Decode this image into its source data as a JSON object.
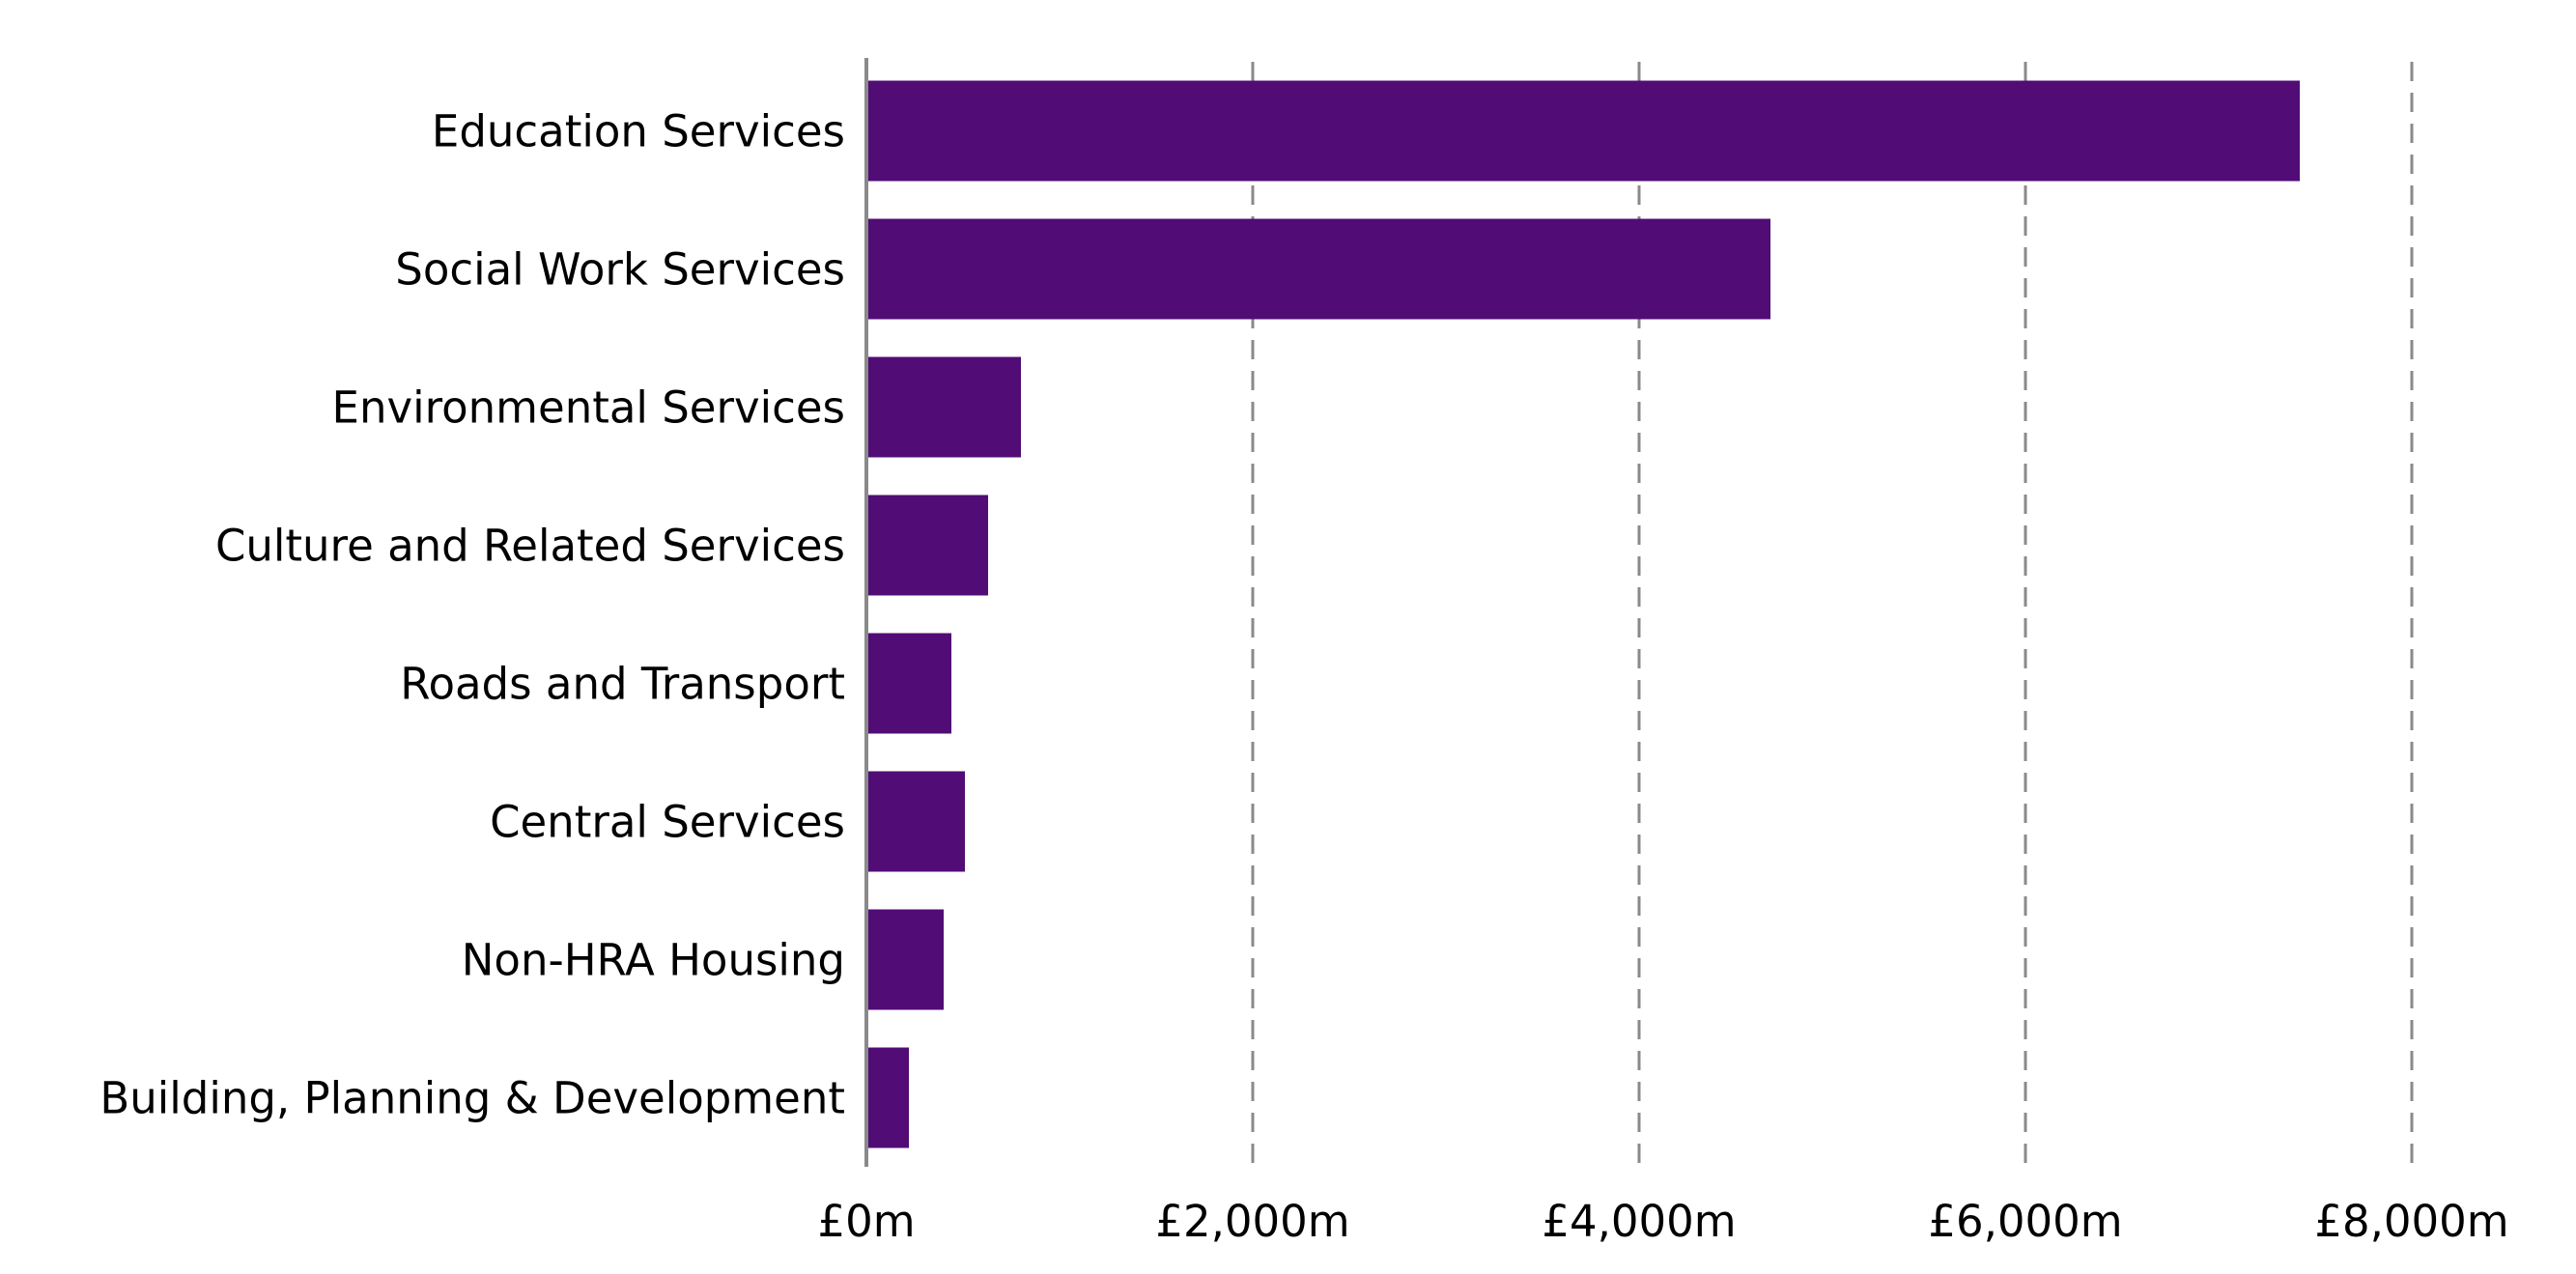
{
  "chart_data": {
    "type": "bar",
    "orientation": "horizontal",
    "title": "",
    "xlabel": "",
    "ylabel": "",
    "categories": [
      "Education Services",
      "Social Work Services",
      "Environmental Services",
      "Culture and Related Services",
      "Roads and Transport",
      "Central Services",
      "Non-HRA Housing",
      "Building, Planning & Development"
    ],
    "values": [
      7420,
      4680,
      800,
      630,
      440,
      510,
      400,
      220
    ],
    "xlim": [
      0,
      8000
    ],
    "ticks": [
      0,
      2000,
      4000,
      6000,
      8000
    ],
    "tick_labels": [
      "£0m",
      "£2,000m",
      "£4,000m",
      "£6,000m",
      "£8,000m"
    ],
    "grid": "vertical-dashed",
    "legend": "none",
    "bar_color": "#510c76"
  }
}
